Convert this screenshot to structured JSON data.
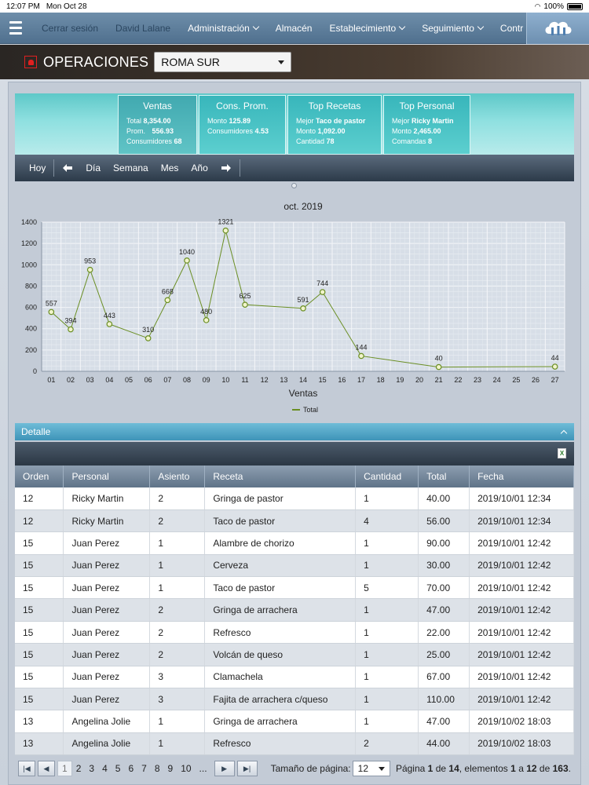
{
  "status": {
    "time": "12:07 PM",
    "date": "Mon Oct 28",
    "battery": "100%"
  },
  "nav": {
    "items": [
      {
        "label": "Cerrar sesión",
        "dim": true
      },
      {
        "label": "David Lalane",
        "dim": true
      },
      {
        "label": "Administración",
        "dropdown": true
      },
      {
        "label": "Almacén"
      },
      {
        "label": "Establecimiento",
        "dropdown": true
      },
      {
        "label": "Seguimiento",
        "dropdown": true
      },
      {
        "label": "Contr"
      }
    ]
  },
  "operaciones": {
    "title": "OPERACIONES",
    "branch": "ROMA SUR"
  },
  "kpis": {
    "ventas": {
      "title": "Ventas",
      "total_label": "Total",
      "total": "8,354.00",
      "prom_label": "Prom.",
      "prom": "556.93",
      "cons_label": "Consumidores",
      "cons": "68"
    },
    "cons_prom": {
      "title": "Cons. Prom.",
      "monto_label": "Monto",
      "monto": "125.89",
      "cons_label": "Consumidores",
      "cons": "4.53"
    },
    "top_recetas": {
      "title": "Top Recetas",
      "mejor_label": "Mejor",
      "mejor": "Taco de pastor",
      "monto_label": "Monto",
      "monto": "1,092.00",
      "cant_label": "Cantidad",
      "cant": "78"
    },
    "top_personal": {
      "title": "Top Personal",
      "mejor_label": "Mejor",
      "mejor": "Ricky Martin",
      "monto_label": "Monto",
      "monto": "2,465.00",
      "com_label": "Comandas",
      "com": "8"
    }
  },
  "toolbar": {
    "hoy": "Hoy",
    "dia": "Día",
    "semana": "Semana",
    "mes": "Mes",
    "anio": "Año"
  },
  "chart_data": {
    "type": "line",
    "title": "oct. 2019",
    "xlabel": "Ventas",
    "ylabel": "",
    "ylim": [
      0,
      1400
    ],
    "yticks": [
      0,
      200,
      400,
      600,
      800,
      1000,
      1200,
      1400
    ],
    "categories": [
      "01",
      "02",
      "03",
      "04",
      "05",
      "06",
      "07",
      "08",
      "09",
      "10",
      "11",
      "12",
      "13",
      "14",
      "15",
      "16",
      "17",
      "18",
      "19",
      "20",
      "21",
      "22",
      "23",
      "24",
      "25",
      "26",
      "27"
    ],
    "series": [
      {
        "name": "Total",
        "color": "#6a8e23",
        "points": [
          {
            "x": "01",
            "y": 557
          },
          {
            "x": "02",
            "y": 394
          },
          {
            "x": "03",
            "y": 953
          },
          {
            "x": "04",
            "y": 443
          },
          {
            "x": "06",
            "y": 310
          },
          {
            "x": "07",
            "y": 668
          },
          {
            "x": "08",
            "y": 1040
          },
          {
            "x": "09",
            "y": 480
          },
          {
            "x": "10",
            "y": 1321
          },
          {
            "x": "11",
            "y": 625
          },
          {
            "x": "14",
            "y": 591
          },
          {
            "x": "15",
            "y": 744
          },
          {
            "x": "17",
            "y": 144
          },
          {
            "x": "21",
            "y": 40
          },
          {
            "x": "27",
            "y": 44
          }
        ]
      }
    ],
    "grid": true,
    "legend": "bottom-center"
  },
  "detalle": {
    "title": "Detalle"
  },
  "table": {
    "columns": [
      "Orden",
      "Personal",
      "Asiento",
      "Receta",
      "Cantidad",
      "Total",
      "Fecha"
    ],
    "rows": [
      [
        "12",
        "Ricky Martin",
        "2",
        "Gringa de pastor",
        "1",
        "40.00",
        "2019/10/01 12:34"
      ],
      [
        "12",
        "Ricky Martin",
        "2",
        "Taco de pastor",
        "4",
        "56.00",
        "2019/10/01 12:34"
      ],
      [
        "15",
        "Juan Perez",
        "1",
        "Alambre de chorizo",
        "1",
        "90.00",
        "2019/10/01 12:42"
      ],
      [
        "15",
        "Juan Perez",
        "1",
        "Cerveza",
        "1",
        "30.00",
        "2019/10/01 12:42"
      ],
      [
        "15",
        "Juan Perez",
        "1",
        "Taco de pastor",
        "5",
        "70.00",
        "2019/10/01 12:42"
      ],
      [
        "15",
        "Juan Perez",
        "2",
        "Gringa de arrachera",
        "1",
        "47.00",
        "2019/10/01 12:42"
      ],
      [
        "15",
        "Juan Perez",
        "2",
        "Refresco",
        "1",
        "22.00",
        "2019/10/01 12:42"
      ],
      [
        "15",
        "Juan Perez",
        "2",
        "Volcán de queso",
        "1",
        "25.00",
        "2019/10/01 12:42"
      ],
      [
        "15",
        "Juan Perez",
        "3",
        "Clamachela",
        "1",
        "67.00",
        "2019/10/01 12:42"
      ],
      [
        "15",
        "Juan Perez",
        "3",
        "Fajita de arrachera c/queso",
        "1",
        "110.00",
        "2019/10/01 12:42"
      ],
      [
        "13",
        "Angelina Jolie",
        "1",
        "Gringa de arrachera",
        "1",
        "47.00",
        "2019/10/02 18:03"
      ],
      [
        "13",
        "Angelina Jolie",
        "1",
        "Refresco",
        "2",
        "44.00",
        "2019/10/02 18:03"
      ]
    ]
  },
  "pager": {
    "pages": [
      "1",
      "2",
      "3",
      "4",
      "5",
      "6",
      "7",
      "8",
      "9",
      "10",
      "..."
    ],
    "current": "1",
    "size_label": "Tamaño de página:",
    "size": "12",
    "info": {
      "page_word": "Página",
      "page": "1",
      "of_word": "de",
      "total_pages": "14",
      "elements_word": ", elementos",
      "from": "1",
      "to_word": "a",
      "to": "12",
      "de2": "de",
      "total": "163",
      "end": "."
    }
  }
}
